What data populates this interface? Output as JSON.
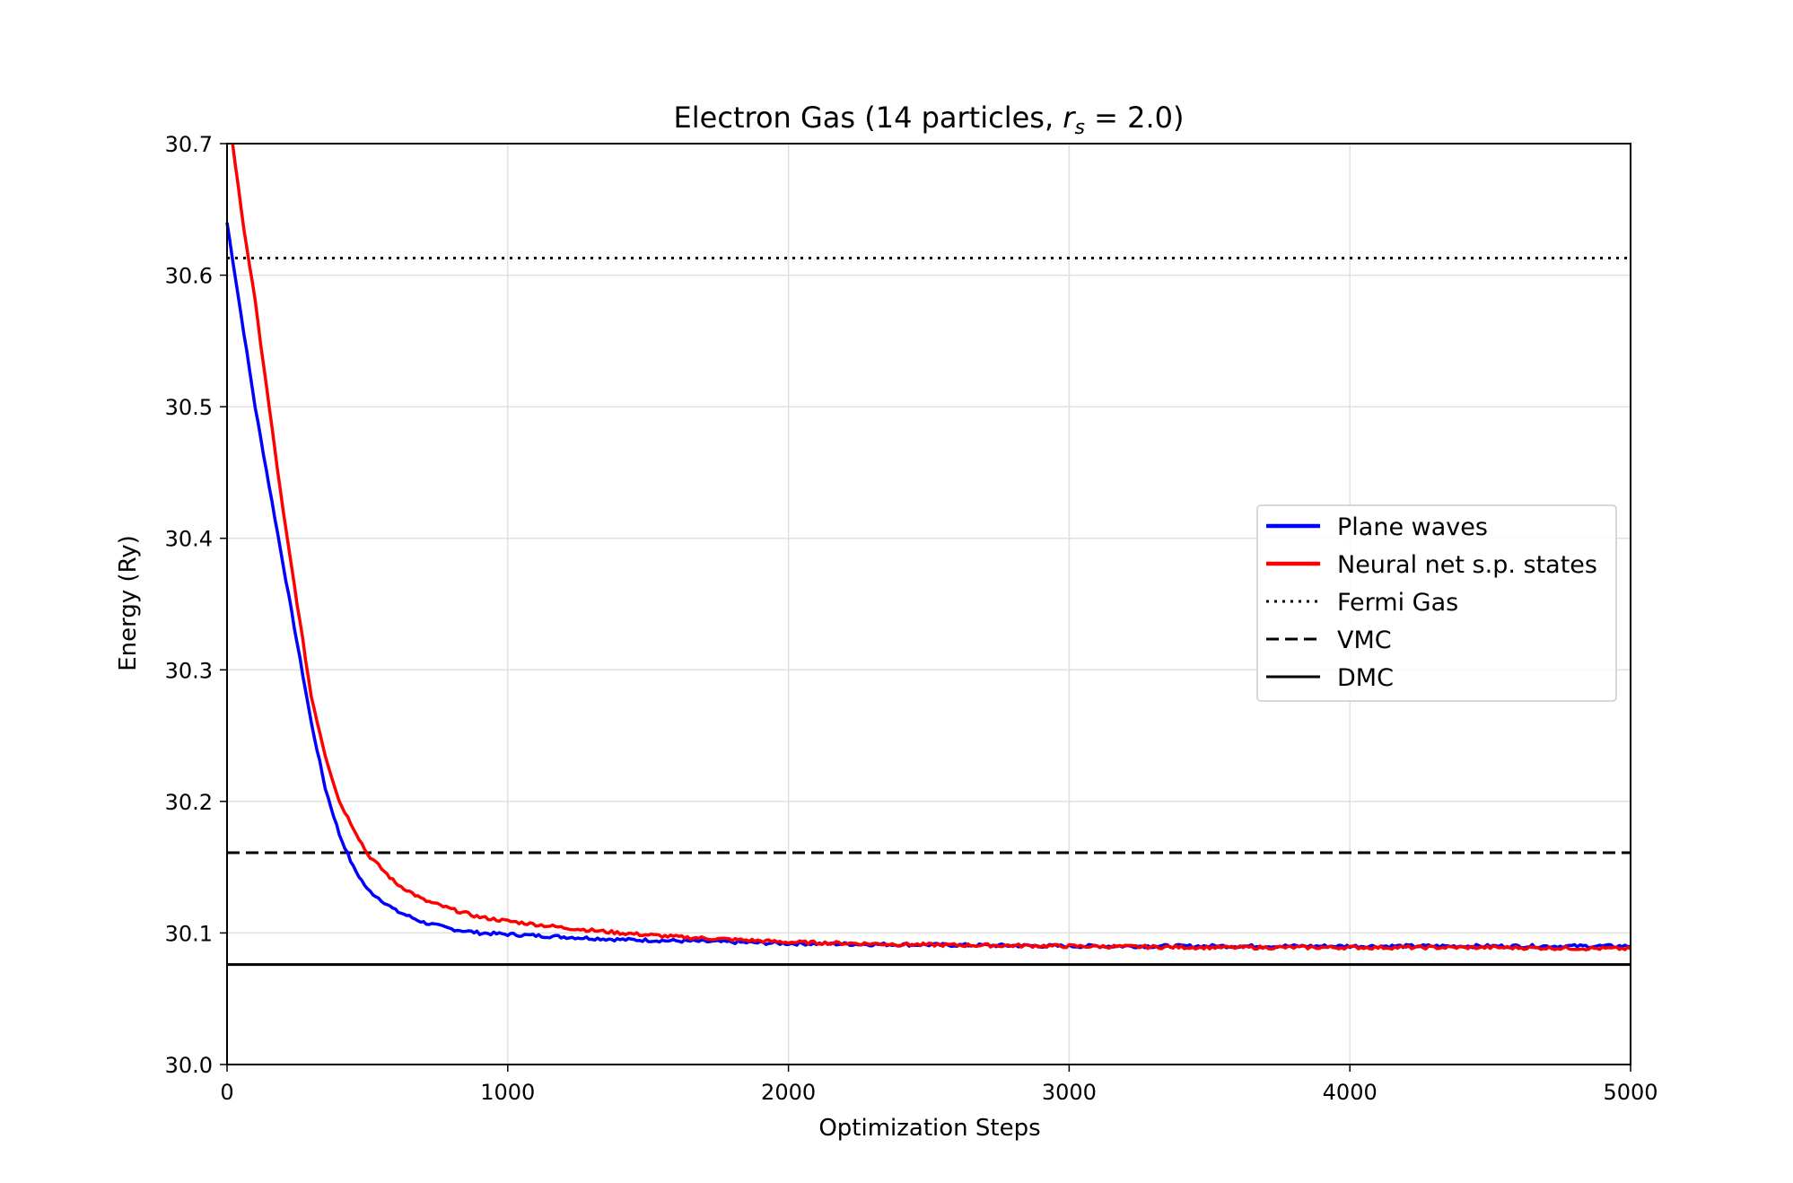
{
  "chart_data": {
    "type": "line",
    "title": "Electron Gas (14 particles, r_s = 2.0)",
    "title_parts": {
      "prefix": "Electron Gas (14 particles, ",
      "var": "r",
      "sub": "s",
      "suffix": " = 2.0)"
    },
    "xlabel": "Optimization Steps",
    "ylabel": "Energy (Ry)",
    "xlim": [
      0,
      5000
    ],
    "ylim": [
      30.0,
      30.7
    ],
    "xticks": [
      0,
      1000,
      2000,
      3000,
      4000,
      5000
    ],
    "xtick_labels": [
      "0",
      "1000",
      "2000",
      "3000",
      "4000",
      "5000"
    ],
    "yticks": [
      30.0,
      30.1,
      30.2,
      30.3,
      30.4,
      30.5,
      30.6,
      30.7
    ],
    "ytick_labels": [
      "30.0",
      "30.1",
      "30.2",
      "30.3",
      "30.4",
      "30.5",
      "30.6",
      "30.7"
    ],
    "grid": true,
    "legend_position": "center-right",
    "series": [
      {
        "name": "Plane waves",
        "color": "#0000ff",
        "style": "solid",
        "x": [
          0,
          50,
          100,
          150,
          200,
          250,
          300,
          350,
          400,
          450,
          500,
          600,
          700,
          800,
          900,
          1000,
          1200,
          1400,
          1600,
          1800,
          2000,
          2500,
          3000,
          3500,
          4000,
          4500,
          5000
        ],
        "y": [
          30.64,
          30.57,
          30.5,
          30.44,
          30.38,
          30.32,
          30.26,
          30.21,
          30.175,
          30.15,
          30.133,
          30.117,
          30.108,
          30.103,
          30.1,
          30.099,
          30.097,
          30.095,
          30.094,
          30.093,
          30.092,
          30.091,
          30.09,
          30.09,
          30.09,
          30.09,
          30.09
        ]
      },
      {
        "name": "Neural net s.p. states",
        "color": "#ff0000",
        "style": "solid",
        "x": [
          20,
          50,
          100,
          150,
          200,
          250,
          300,
          350,
          400,
          450,
          500,
          600,
          700,
          800,
          900,
          1000,
          1200,
          1400,
          1600,
          1800,
          2000,
          2500,
          3000,
          3500,
          4000,
          4500,
          5000
        ],
        "y": [
          30.7,
          30.65,
          30.58,
          30.5,
          30.42,
          30.35,
          30.28,
          30.235,
          30.2,
          30.18,
          30.16,
          30.138,
          30.125,
          30.118,
          30.112,
          30.109,
          30.104,
          30.1,
          30.097,
          30.095,
          30.093,
          30.091,
          30.09,
          30.089,
          30.089,
          30.089,
          30.088
        ]
      },
      {
        "name": "Fermi Gas",
        "color": "#000000",
        "style": "dotted",
        "hline": 30.613
      },
      {
        "name": "VMC",
        "color": "#000000",
        "style": "dashed",
        "hline": 30.161
      },
      {
        "name": "DMC",
        "color": "#000000",
        "style": "solid",
        "hline": 30.076
      }
    ]
  }
}
